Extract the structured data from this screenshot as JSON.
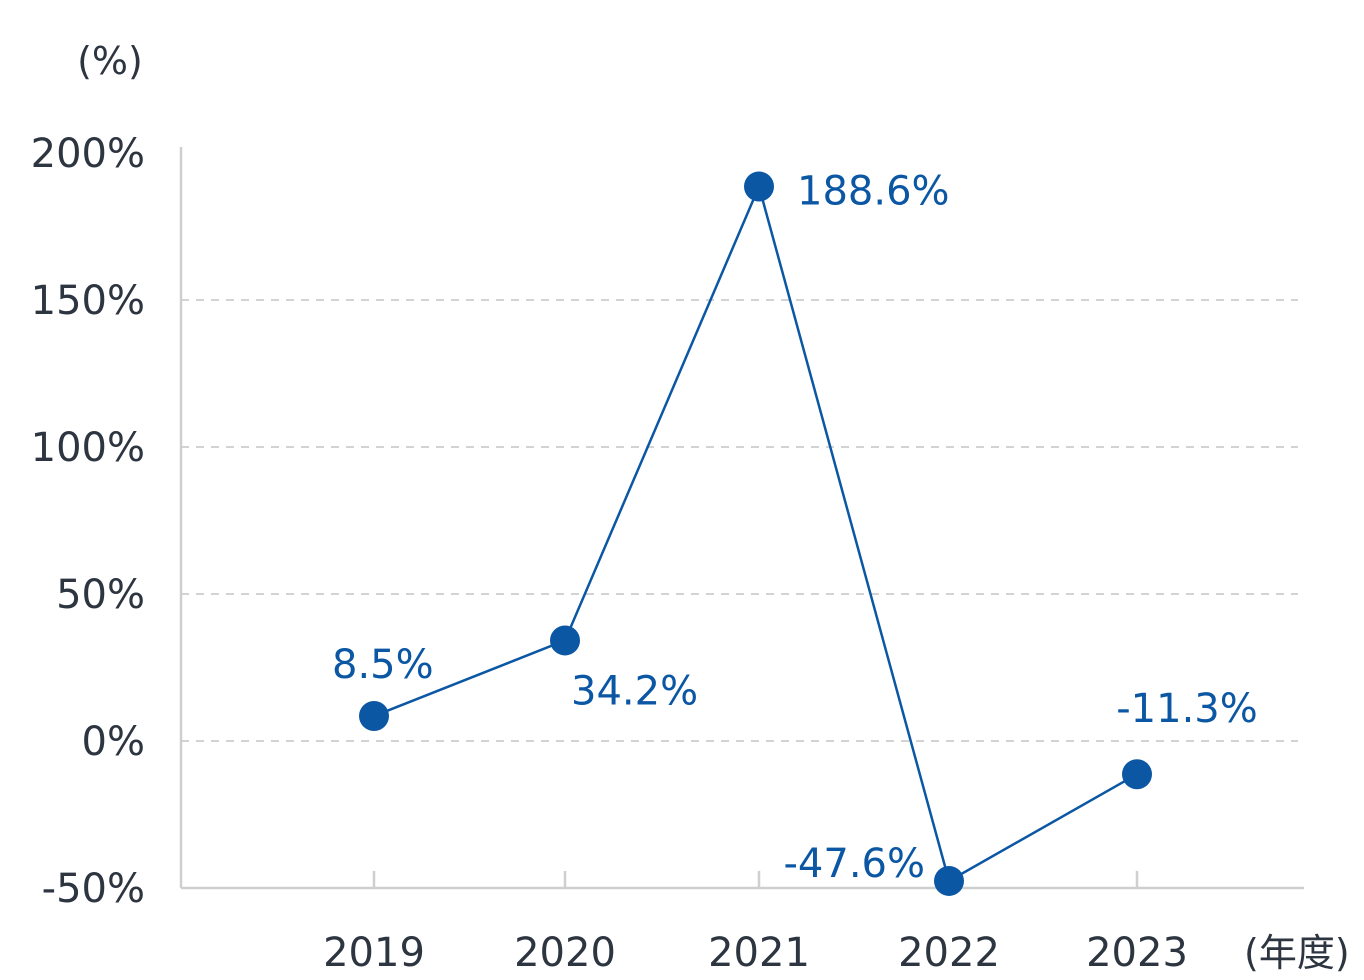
{
  "chart_data": {
    "type": "line",
    "title": "",
    "xlabel": "(年度)",
    "ylabel": "(%)",
    "categories": [
      "2019",
      "2020",
      "2021",
      "2022",
      "2023"
    ],
    "series": [
      {
        "values": [
          8.5,
          34.2,
          188.6,
          -47.6,
          -11.3
        ],
        "labels": [
          "8.5%",
          "34.2%",
          "188.6%",
          "-47.6%",
          "-11.3%"
        ]
      }
    ],
    "ylim": [
      -50,
      200
    ],
    "yticks": [
      -50,
      0,
      50,
      100,
      150,
      200
    ],
    "ytick_labels": [
      "-50%",
      "0%",
      "50%",
      "100%",
      "150%",
      "200%"
    ],
    "grid": true,
    "colors": {
      "line": "#0b57a4",
      "grid": "#d3d3d3",
      "axis": "#cfcfcf",
      "text": "#2d3540"
    }
  }
}
